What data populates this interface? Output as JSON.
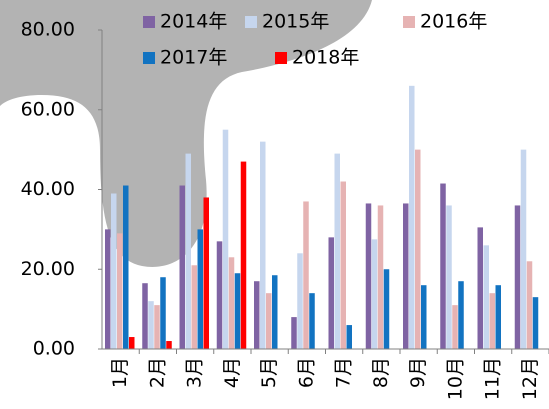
{
  "chart_data": {
    "type": "bar",
    "categories": [
      "1月",
      "2月",
      "3月",
      "4月",
      "5月",
      "6月",
      "7月",
      "8月",
      "9月",
      "10月",
      "11月",
      "12月"
    ],
    "series": [
      {
        "name": "2014年",
        "color": "#7f63a3",
        "values": [
          30,
          16.5,
          41,
          27,
          17,
          8,
          28,
          36.5,
          36.5,
          41.5,
          30.5,
          36
        ]
      },
      {
        "name": "2015年",
        "color": "#c6d6ee",
        "values": [
          39,
          12,
          49,
          55,
          52,
          24,
          49,
          27.5,
          66,
          36,
          26,
          50
        ]
      },
      {
        "name": "2016年",
        "color": "#e6b3b3",
        "values": [
          29,
          11,
          21,
          23,
          14,
          37,
          42,
          36,
          50,
          11,
          14,
          22
        ]
      },
      {
        "name": "2017年",
        "color": "#1273c1",
        "values": [
          41,
          18,
          30,
          19,
          18.5,
          14,
          6,
          20,
          16,
          17,
          16,
          13
        ]
      },
      {
        "name": "2018年",
        "color": "#ff0000",
        "values": [
          3,
          2,
          38,
          47,
          null,
          null,
          null,
          null,
          null,
          null,
          null,
          null
        ]
      }
    ],
    "ylim": [
      0,
      80
    ],
    "yticks": [
      {
        "value": 0,
        "label": "0.00"
      },
      {
        "value": 20,
        "label": "20.00"
      },
      {
        "value": 40,
        "label": "40.00"
      },
      {
        "value": 60,
        "label": "60.00"
      },
      {
        "value": 80,
        "label": "80.00"
      }
    ],
    "legend": "upper-left"
  }
}
